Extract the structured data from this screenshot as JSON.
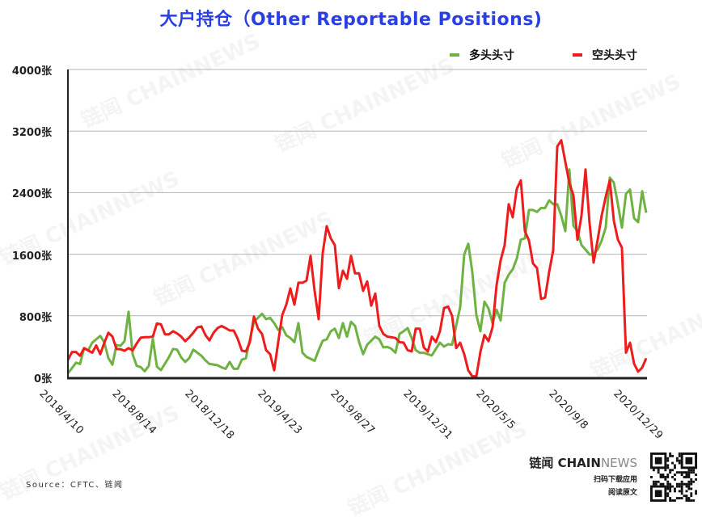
{
  "chart_data": {
    "type": "line",
    "title": "大户持仓（Other Reportable Positions)",
    "x_start": "2018/4/10",
    "x_interval": "weekly",
    "xticks": [
      "2018/4/10",
      "2018/8/14",
      "2018/12/18",
      "2019/4/23",
      "2019/8/27",
      "2019/12/31",
      "2020/5/5",
      "2020/9/8",
      "2020/12/29"
    ],
    "yticks": [
      "0张",
      "800张",
      "1600张",
      "2400张",
      "3200张",
      "4000张"
    ],
    "ylim": [
      0,
      4000
    ],
    "grid": true,
    "legend_position": "top-right",
    "series": [
      {
        "name": "多头头寸",
        "color": "#6fb244",
        "values": [
          52,
          120,
          191,
          174,
          380,
          350,
          450,
          495,
          539,
          455,
          250,
          165,
          420,
          410,
          470,
          853,
          300,
          150,
          133,
          80,
          150,
          500,
          140,
          95,
          180,
          265,
          370,
          360,
          260,
          200,
          250,
          360,
          320,
          280,
          220,
          174,
          167,
          158,
          130,
          110,
          200,
          111,
          111,
          230,
          248,
          494,
          721,
          774,
          826,
          756,
          774,
          704,
          616,
          651,
          546,
          511,
          458,
          704,
          319,
          266,
          241,
          214,
          354,
          476,
          494,
          598,
          633,
          511,
          704,
          529,
          721,
          669,
          458,
          301,
          424,
          476,
          529,
          494,
          389,
          396,
          371,
          319,
          564,
          598,
          640,
          511,
          354,
          319,
          319,
          301,
          284,
          371,
          450,
          400,
          430,
          424,
          669,
          914,
          1596,
          1736,
          1369,
          809,
          599,
          984,
          896,
          704,
          879,
          739,
          1229,
          1334,
          1404,
          1544,
          1789,
          1806,
          2174,
          2174,
          2150,
          2200,
          2200,
          2300,
          2250,
          2250,
          2100,
          1900,
          2700,
          1970,
          1900,
          1720,
          1660,
          1596,
          1600,
          1660,
          1780,
          1950,
          2594,
          2530,
          2250,
          1946,
          2384,
          2440,
          2069,
          2016,
          2419,
          2139
        ]
      },
      {
        "name": "空头头寸",
        "color": "#ee1c1c",
        "values": [
          226,
          330,
          330,
          280,
          380,
          350,
          320,
          415,
          300,
          450,
          580,
          530,
          370,
          365,
          345,
          380,
          350,
          440,
          515,
          522,
          522,
          530,
          700,
          690,
          560,
          560,
          600,
          570,
          530,
          470,
          520,
          580,
          650,
          661,
          550,
          480,
          580,
          640,
          668,
          640,
          609,
          609,
          500,
          348,
          336,
          458,
          791,
          633,
          564,
          354,
          301,
          91,
          458,
          809,
          945,
          1155,
          945,
          1229,
          1229,
          1257,
          1579,
          1124,
          756,
          1614,
          1964,
          1806,
          1719,
          1159,
          1386,
          1281,
          1579,
          1351,
          1351,
          1124,
          1246,
          931,
          1089,
          669,
          564,
          529,
          522,
          511,
          458,
          451,
          354,
          336,
          633,
          633,
          389,
          336,
          529,
          458,
          600,
          900,
          920,
          800,
          380,
          450,
          300,
          90,
          15,
          15,
          330,
          550,
          470,
          650,
          1200,
          1520,
          1720,
          2250,
          2080,
          2450,
          2560,
          1900,
          1780,
          1480,
          1420,
          1019,
          1036,
          1369,
          1650,
          3000,
          3080,
          2800,
          2524,
          2366,
          1789,
          2100,
          2700,
          2000,
          1491,
          1789,
          2104,
          2349,
          2559,
          2034,
          1789,
          1684,
          320,
          450,
          179,
          74,
          126,
          249
        ]
      }
    ]
  },
  "footer": {
    "source": "Source：CFTC、链闻",
    "brand_cn": "链闻 ",
    "brand_bold": "CHAIN",
    "brand_light": "NEWS",
    "download": "扫码下载应用",
    "read": "阅读原文"
  },
  "watermark": "链闻 CHAINNEWS"
}
